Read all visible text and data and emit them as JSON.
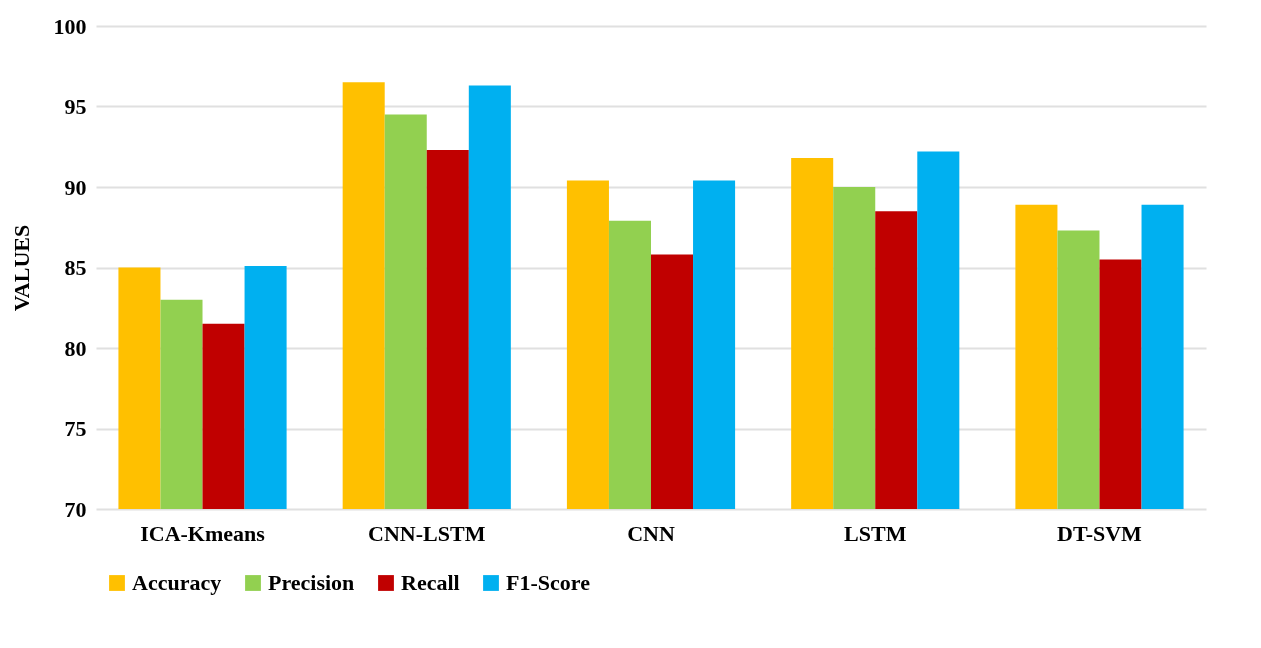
{
  "chart_data": {
    "type": "bar",
    "ylabel": "VALUES",
    "categories": [
      "ICA-Kmeans",
      "CNN-LSTM",
      "CNN",
      "LSTM",
      "DT-SVM"
    ],
    "series": [
      {
        "name": "Accuracy",
        "color": "#ffc000",
        "values": [
          85.0,
          96.5,
          90.4,
          91.8,
          88.9
        ]
      },
      {
        "name": "Precision",
        "color": "#92d050",
        "values": [
          83.0,
          94.5,
          87.9,
          90.0,
          87.3
        ]
      },
      {
        "name": "Recall",
        "color": "#c00000",
        "values": [
          81.5,
          92.3,
          85.8,
          88.5,
          85.5
        ]
      },
      {
        "name": "F1-Score",
        "color": "#00b0f0",
        "values": [
          85.1,
          96.3,
          90.4,
          92.2,
          88.9
        ]
      }
    ],
    "ylim": [
      70,
      100
    ],
    "yticks": [
      70,
      75,
      80,
      85,
      90,
      95,
      100
    ],
    "grid": "y",
    "legend": "bottom"
  }
}
